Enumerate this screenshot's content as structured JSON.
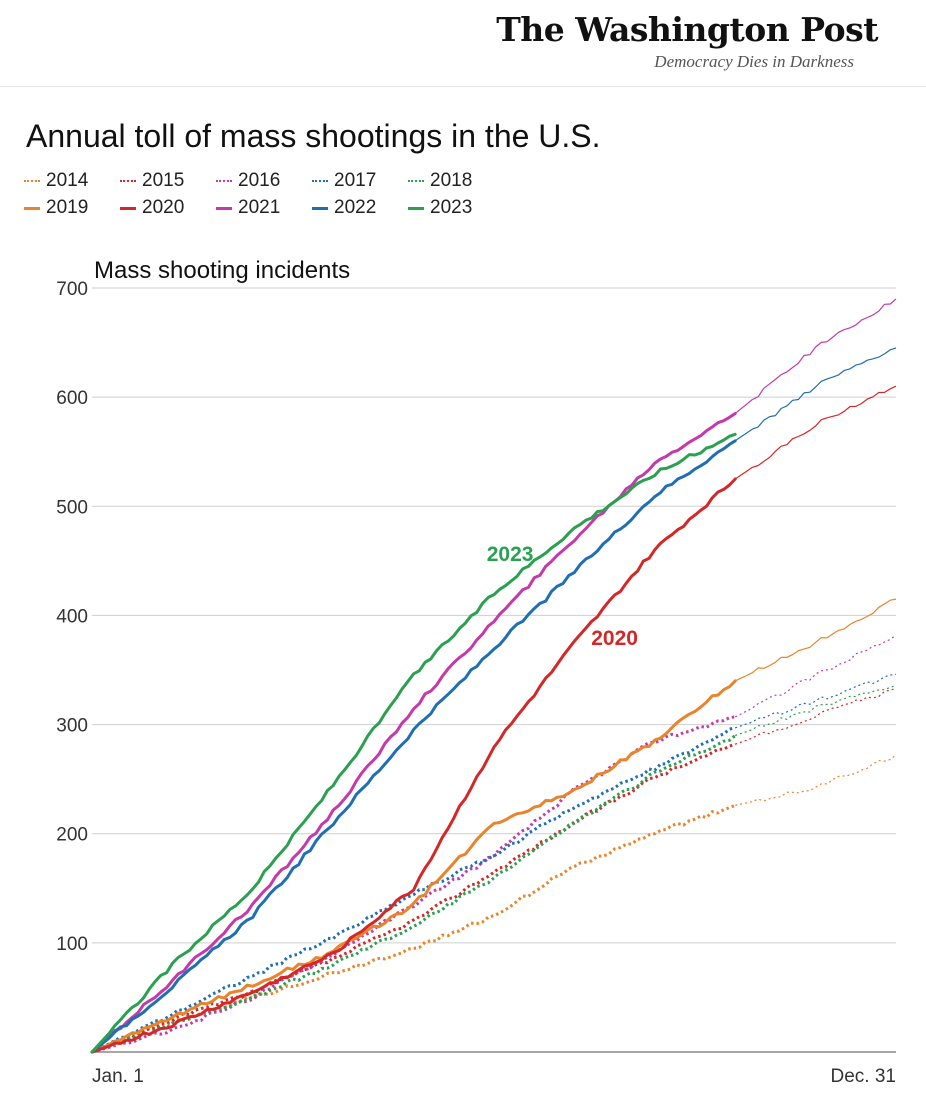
{
  "header": {
    "logo": "The Washington Post",
    "tagline": "Democracy Dies in Darkness"
  },
  "chart_data": {
    "type": "line",
    "title": "Annual toll of mass shootings in the U.S.",
    "ylabel": "Mass shooting incidents",
    "xlabel": "",
    "x_tick_labels": [
      "Jan. 1",
      "Dec. 31"
    ],
    "ylim": [
      0,
      700
    ],
    "y_ticks": [
      100,
      200,
      300,
      400,
      500,
      600,
      700
    ],
    "grid": true,
    "legend_position": "top-left",
    "annotations": [
      {
        "text": "2023",
        "series": "2023",
        "x": 0.52,
        "y": 450
      },
      {
        "text": "2020",
        "series": "2020",
        "x": 0.65,
        "y": 373
      }
    ],
    "series": [
      {
        "name": "2014",
        "color": "#e8842c",
        "style": "dotted",
        "points": [
          [
            0,
            0
          ],
          [
            0.1,
            28
          ],
          [
            0.2,
            50
          ],
          [
            0.3,
            72
          ],
          [
            0.4,
            95
          ],
          [
            0.5,
            125
          ],
          [
            0.6,
            170
          ],
          [
            0.7,
            200
          ],
          [
            0.8,
            226
          ],
          [
            0.9,
            242
          ],
          [
            1.0,
            272
          ]
        ]
      },
      {
        "name": "2015",
        "color": "#d42828",
        "style": "dotted",
        "points": [
          [
            0,
            0
          ],
          [
            0.1,
            30
          ],
          [
            0.2,
            55
          ],
          [
            0.3,
            85
          ],
          [
            0.4,
            120
          ],
          [
            0.5,
            165
          ],
          [
            0.6,
            210
          ],
          [
            0.7,
            252
          ],
          [
            0.8,
            282
          ],
          [
            0.9,
            308
          ],
          [
            1.0,
            333
          ]
        ]
      },
      {
        "name": "2016",
        "color": "#c43aaa",
        "style": "dotted",
        "points": [
          [
            0,
            0
          ],
          [
            0.1,
            20
          ],
          [
            0.2,
            50
          ],
          [
            0.3,
            90
          ],
          [
            0.4,
            135
          ],
          [
            0.5,
            180
          ],
          [
            0.6,
            240
          ],
          [
            0.7,
            285
          ],
          [
            0.8,
            307
          ],
          [
            0.9,
            345
          ],
          [
            1.0,
            382
          ]
        ]
      },
      {
        "name": "2017",
        "color": "#1f6fb2",
        "style": "dotted",
        "points": [
          [
            0,
            0
          ],
          [
            0.1,
            35
          ],
          [
            0.2,
            70
          ],
          [
            0.3,
            105
          ],
          [
            0.4,
            145
          ],
          [
            0.5,
            180
          ],
          [
            0.6,
            225
          ],
          [
            0.7,
            260
          ],
          [
            0.8,
            297
          ],
          [
            0.9,
            322
          ],
          [
            1.0,
            346
          ]
        ]
      },
      {
        "name": "2018",
        "color": "#2aa050",
        "style": "dotted",
        "points": [
          [
            0,
            0
          ],
          [
            0.1,
            25
          ],
          [
            0.2,
            50
          ],
          [
            0.3,
            80
          ],
          [
            0.4,
            115
          ],
          [
            0.5,
            160
          ],
          [
            0.6,
            210
          ],
          [
            0.7,
            255
          ],
          [
            0.8,
            290
          ],
          [
            0.9,
            315
          ],
          [
            1.0,
            336
          ]
        ]
      },
      {
        "name": "2019",
        "color": "#e8842c",
        "style": "solid",
        "points": [
          [
            0,
            0
          ],
          [
            0.1,
            32
          ],
          [
            0.2,
            62
          ],
          [
            0.3,
            92
          ],
          [
            0.4,
            135
          ],
          [
            0.5,
            210
          ],
          [
            0.6,
            240
          ],
          [
            0.7,
            285
          ],
          [
            0.8,
            340
          ],
          [
            0.9,
            375
          ],
          [
            1.0,
            415
          ]
        ]
      },
      {
        "name": "2020",
        "color": "#d42828",
        "style": "solid",
        "points": [
          [
            0,
            0
          ],
          [
            0.1,
            25
          ],
          [
            0.2,
            55
          ],
          [
            0.3,
            90
          ],
          [
            0.4,
            150
          ],
          [
            0.5,
            280
          ],
          [
            0.6,
            375
          ],
          [
            0.7,
            460
          ],
          [
            0.8,
            525
          ],
          [
            0.9,
            575
          ],
          [
            1.0,
            610
          ]
        ]
      },
      {
        "name": "2021",
        "color": "#c43aaa",
        "style": "solid",
        "points": [
          [
            0,
            0
          ],
          [
            0.1,
            65
          ],
          [
            0.2,
            135
          ],
          [
            0.3,
            220
          ],
          [
            0.4,
            315
          ],
          [
            0.5,
            395
          ],
          [
            0.6,
            470
          ],
          [
            0.7,
            540
          ],
          [
            0.8,
            585
          ],
          [
            0.9,
            645
          ],
          [
            1.0,
            690
          ]
        ]
      },
      {
        "name": "2022",
        "color": "#1f6fb2",
        "style": "solid",
        "points": [
          [
            0,
            0
          ],
          [
            0.1,
            60
          ],
          [
            0.2,
            125
          ],
          [
            0.3,
            210
          ],
          [
            0.4,
            295
          ],
          [
            0.5,
            370
          ],
          [
            0.6,
            440
          ],
          [
            0.7,
            510
          ],
          [
            0.8,
            560
          ],
          [
            0.9,
            610
          ],
          [
            1.0,
            645
          ]
        ]
      },
      {
        "name": "2023",
        "color": "#2aa050",
        "style": "solid",
        "points": [
          [
            0,
            0
          ],
          [
            0.1,
            80
          ],
          [
            0.2,
            150
          ],
          [
            0.3,
            245
          ],
          [
            0.4,
            345
          ],
          [
            0.5,
            420
          ],
          [
            0.6,
            480
          ],
          [
            0.7,
            530
          ],
          [
            0.8,
            566
          ]
        ]
      }
    ]
  }
}
